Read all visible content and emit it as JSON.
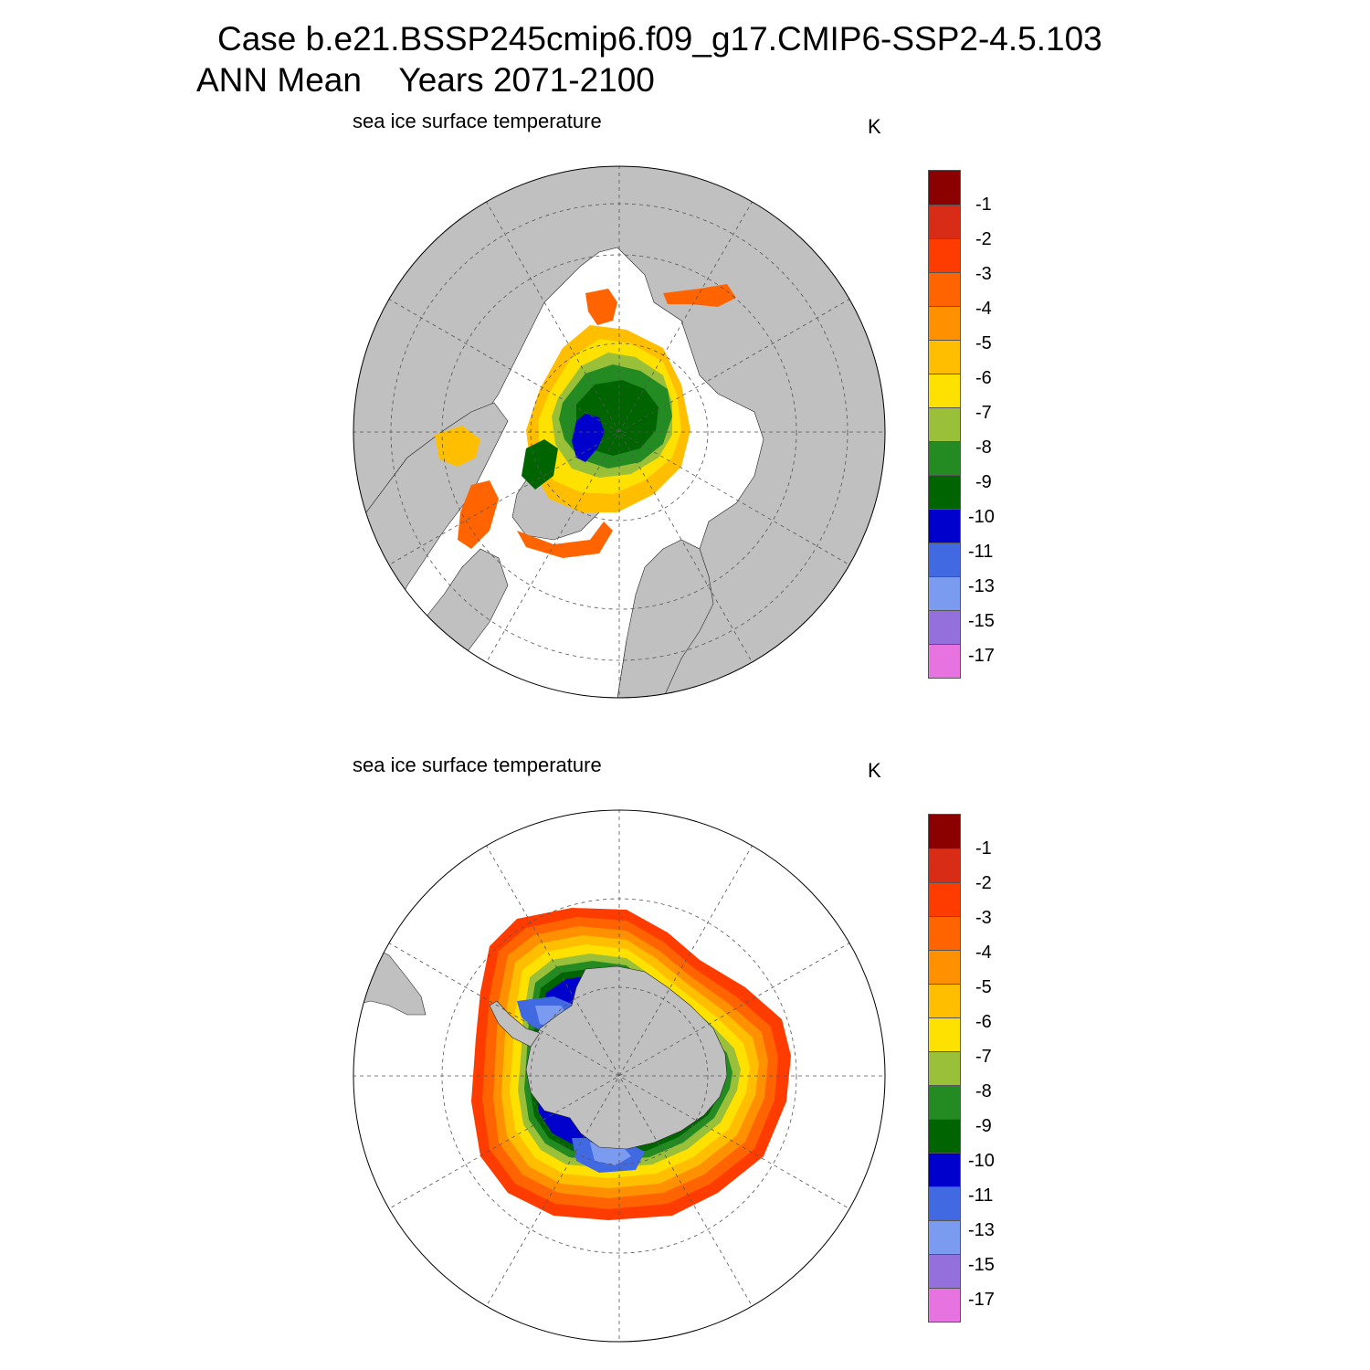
{
  "title": {
    "case_line": "Case b.e21.BSSP245cmip6.f09_g17.CMIP6-SSP2-4.5.103",
    "ann_label": "ANN Mean",
    "years_label": "Years 2071-2100"
  },
  "colorbar": {
    "labels": [
      "-1",
      "-2",
      "-3",
      "-4",
      "-5",
      "-6",
      "-7",
      "-8",
      "-9",
      "-10",
      "-11",
      "-13",
      "-15",
      "-17"
    ],
    "colors": [
      "#8b0000",
      "#d82c16",
      "#ff3c00",
      "#ff6400",
      "#ff9000",
      "#ffbf00",
      "#ffe100",
      "#9ac03a",
      "#238b22",
      "#006400",
      "#0000cd",
      "#4169e1",
      "#7b9bf1",
      "#9370db",
      "#e673e0"
    ]
  },
  "colors": {
    "land": "#c0c0c0",
    "open_ocean": "#ffffff",
    "grid": "#555555"
  },
  "panels": [
    {
      "id": "north",
      "subtitle": "sea ice surface temperature",
      "units": "K",
      "hemisphere": "north"
    },
    {
      "id": "south",
      "subtitle": "sea ice surface temperature",
      "units": "K",
      "hemisphere": "south"
    }
  ]
}
